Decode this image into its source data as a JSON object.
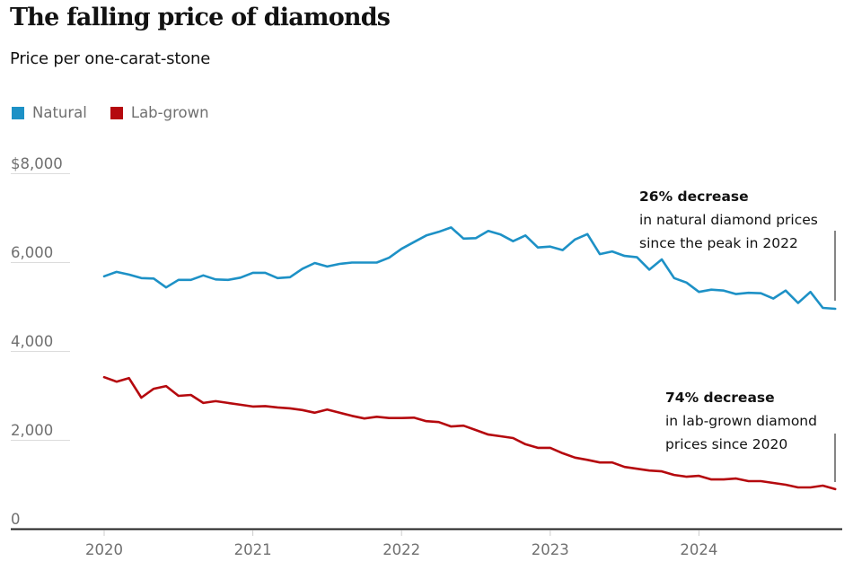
{
  "title": "The falling price of diamonds",
  "subtitle": "Price per one-carat-stone",
  "legend": [
    {
      "label": "Natural",
      "color": "#1d91c6"
    },
    {
      "label": "Lab-grown",
      "color": "#b5090e"
    }
  ],
  "annotations": [
    {
      "headline": "26% decrease",
      "lines": [
        "in natural diamond prices",
        "since the peak in 2022"
      ],
      "series": "Natural"
    },
    {
      "headline": "74% decrease",
      "lines": [
        "in lab-grown diamond",
        "prices since 2020"
      ],
      "series": "Lab-grown"
    }
  ],
  "chart_data": {
    "type": "line",
    "title": "The falling price of diamonds",
    "subtitle": "Price per one-carat-stone",
    "xlabel": "",
    "ylabel": "",
    "x_start": "2020-01",
    "x_frequency": "monthly",
    "x_ticks": [
      "2020",
      "2021",
      "2022",
      "2023",
      "2024"
    ],
    "y_ticks": [
      0,
      2000,
      4000,
      6000,
      8000
    ],
    "y_tick_labels": [
      "0",
      "2,000",
      "4,000",
      "6,000",
      "$8,000"
    ],
    "ylim": [
      0,
      8000
    ],
    "xlim_years": [
      2019.45,
      2024.95
    ],
    "grid": "horizontal",
    "legend_position": "top-left",
    "series": [
      {
        "name": "Natural",
        "color": "#1d91c6",
        "values": [
          5680,
          5780,
          5720,
          5640,
          5630,
          5430,
          5600,
          5600,
          5700,
          5610,
          5600,
          5650,
          5760,
          5760,
          5640,
          5660,
          5850,
          5980,
          5900,
          5960,
          5990,
          5990,
          5990,
          6100,
          6300,
          6450,
          6600,
          6680,
          6780,
          6530,
          6540,
          6700,
          6620,
          6470,
          6600,
          6330,
          6350,
          6270,
          6510,
          6630,
          6180,
          6240,
          6140,
          6110,
          5830,
          6060,
          5640,
          5540,
          5330,
          5380,
          5360,
          5280,
          5310,
          5300,
          5180,
          5360,
          5080,
          5330,
          4970,
          4950
        ]
      },
      {
        "name": "Lab-grown",
        "color": "#b5090e",
        "values": [
          3410,
          3310,
          3390,
          2950,
          3150,
          3210,
          2990,
          3010,
          2830,
          2870,
          2830,
          2790,
          2750,
          2760,
          2730,
          2710,
          2670,
          2610,
          2680,
          2610,
          2540,
          2480,
          2520,
          2490,
          2490,
          2500,
          2420,
          2400,
          2300,
          2320,
          2220,
          2120,
          2080,
          2040,
          1900,
          1820,
          1820,
          1700,
          1600,
          1550,
          1490,
          1490,
          1390,
          1350,
          1310,
          1290,
          1210,
          1170,
          1190,
          1110,
          1110,
          1130,
          1070,
          1070,
          1030,
          990,
          930,
          930,
          970,
          890
        ]
      }
    ]
  }
}
